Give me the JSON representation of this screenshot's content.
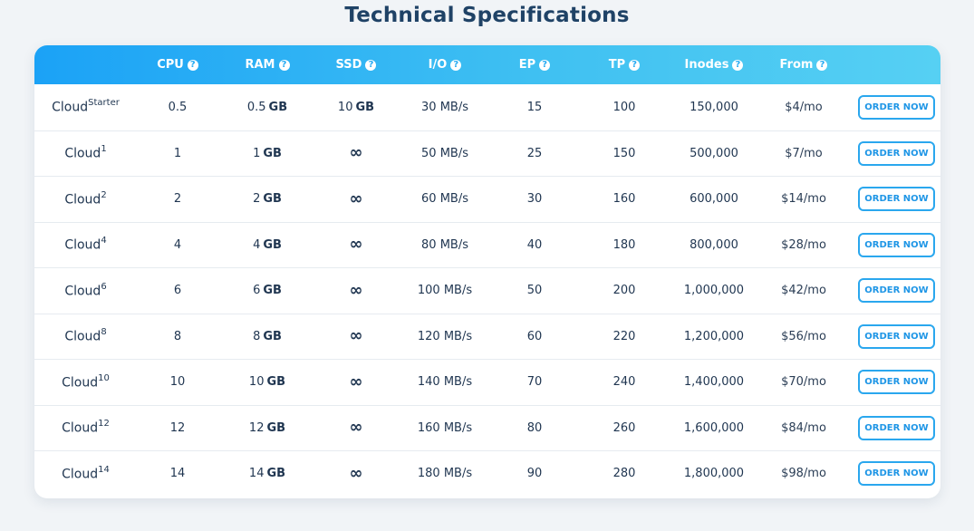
{
  "title": "Technical Specifications",
  "headers": [
    "",
    "CPU",
    "RAM",
    "SSD",
    "I/O",
    "EP",
    "TP",
    "Inodes",
    "From",
    ""
  ],
  "info_glyph": "?",
  "ram_unit": "GB",
  "ssd_unit": "GB",
  "infinity_glyph": "∞",
  "button_label": "ORDER NOW",
  "rows": [
    {
      "plan": "Cloud",
      "sup": "Starter",
      "cpu": "0.5",
      "ram": "0.5",
      "ssd": "10",
      "io": "30 MB/s",
      "ep": "15",
      "tp": "100",
      "inodes": "150,000",
      "price": "$4/mo"
    },
    {
      "plan": "Cloud",
      "sup": "1",
      "cpu": "1",
      "ram": "1",
      "ssd": "∞",
      "io": "50 MB/s",
      "ep": "25",
      "tp": "150",
      "inodes": "500,000",
      "price": "$7/mo"
    },
    {
      "plan": "Cloud",
      "sup": "2",
      "cpu": "2",
      "ram": "2",
      "ssd": "∞",
      "io": "60 MB/s",
      "ep": "30",
      "tp": "160",
      "inodes": "600,000",
      "price": "$14/mo"
    },
    {
      "plan": "Cloud",
      "sup": "4",
      "cpu": "4",
      "ram": "4",
      "ssd": "∞",
      "io": "80 MB/s",
      "ep": "40",
      "tp": "180",
      "inodes": "800,000",
      "price": "$28/mo"
    },
    {
      "plan": "Cloud",
      "sup": "6",
      "cpu": "6",
      "ram": "6",
      "ssd": "∞",
      "io": "100 MB/s",
      "ep": "50",
      "tp": "200",
      "inodes": "1,000,000",
      "price": "$42/mo"
    },
    {
      "plan": "Cloud",
      "sup": "8",
      "cpu": "8",
      "ram": "8",
      "ssd": "∞",
      "io": "120 MB/s",
      "ep": "60",
      "tp": "220",
      "inodes": "1,200,000",
      "price": "$56/mo"
    },
    {
      "plan": "Cloud",
      "sup": "10",
      "cpu": "10",
      "ram": "10",
      "ssd": "∞",
      "io": "140 MB/s",
      "ep": "70",
      "tp": "240",
      "inodes": "1,400,000",
      "price": "$70/mo"
    },
    {
      "plan": "Cloud",
      "sup": "12",
      "cpu": "12",
      "ram": "12",
      "ssd": "∞",
      "io": "160 MB/s",
      "ep": "80",
      "tp": "260",
      "inodes": "1,600,000",
      "price": "$84/mo"
    },
    {
      "plan": "Cloud",
      "sup": "14",
      "cpu": "14",
      "ram": "14",
      "ssd": "∞",
      "io": "180 MB/s",
      "ep": "90",
      "tp": "280",
      "inodes": "1,800,000",
      "price": "$98/mo"
    }
  ],
  "colors": {
    "header_gradient_start": "#1ba2f6",
    "header_gradient_end": "#56d0f3",
    "title": "#1f4266",
    "button_border": "#2aa7ee"
  }
}
